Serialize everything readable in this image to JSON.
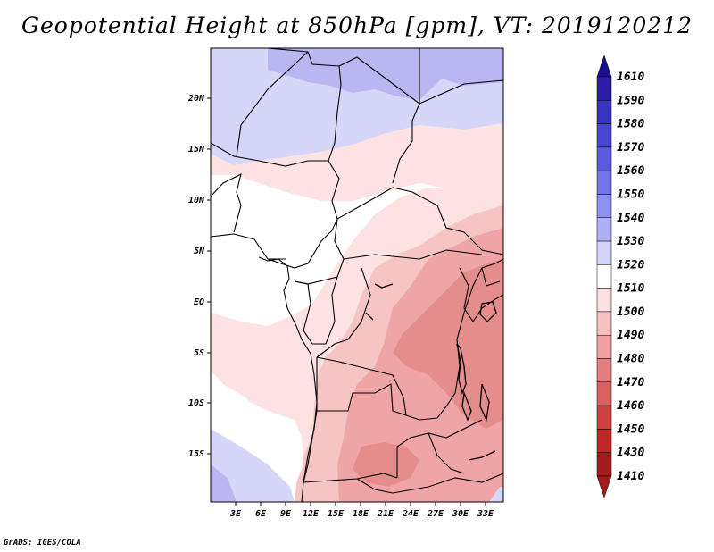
{
  "title": "Geopotential Height at 850hPa [gpm], VT: 2019120212",
  "footer": "GrADS: IGES/COLA",
  "map": {
    "lat_ticks": [
      "20N",
      "15N",
      "10N",
      "5N",
      "EQ",
      "5S",
      "10S",
      "15S"
    ],
    "lon_ticks": [
      "3E",
      "6E",
      "9E",
      "12E",
      "15E",
      "18E",
      "21E",
      "24E",
      "27E",
      "30E",
      "33E"
    ]
  },
  "colorbar": {
    "levels": [
      "1610",
      "1590",
      "1580",
      "1570",
      "1560",
      "1550",
      "1540",
      "1530",
      "1520",
      "1510",
      "1500",
      "1490",
      "1480",
      "1470",
      "1460",
      "1450",
      "1430",
      "1410"
    ],
    "colors": [
      "#1a0f8c",
      "#2b1fa8",
      "#3a32c2",
      "#4a45d4",
      "#5c5ae2",
      "#7474ea",
      "#9090f0",
      "#b0b0f6",
      "#d4d4fa",
      "#ffffff",
      "#fde0e0",
      "#f8c2c2",
      "#f0a2a2",
      "#e58080",
      "#db6060",
      "#cf4040",
      "#c02626",
      "#a51a1a"
    ],
    "colors_note": "top triangle to bottom triangle"
  },
  "field_colors": {
    "h1530": "#b9b6f2",
    "h1520": "#d6d6f8",
    "h1510": "#ffffff",
    "h1500": "#fde2e2",
    "h1490": "#f7c4c4",
    "h1480": "#efa5a5",
    "h1470": "#e58d8d"
  }
}
